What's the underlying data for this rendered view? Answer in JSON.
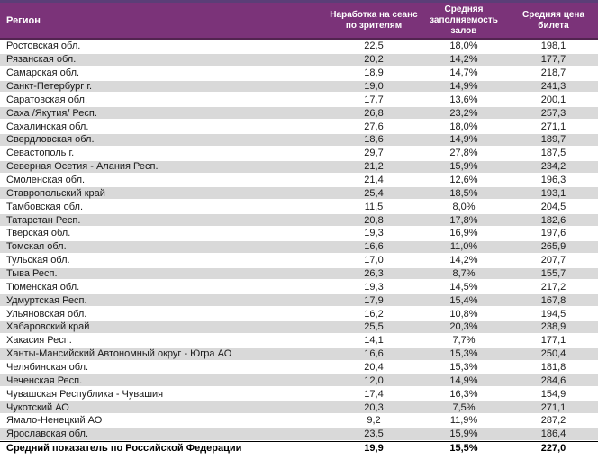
{
  "colors": {
    "header_bg": "#7B3379",
    "header_top_border": "#5B3E77",
    "header_bottom_border": "#522450",
    "band": "#D9D9D9"
  },
  "chart_data": {
    "type": "table",
    "columns": [
      "Регион",
      "Наработка на сеанс по зрителям",
      "Средняя заполняемость залов",
      "Средняя цена билета"
    ],
    "rows": [
      [
        "Ростовская обл.",
        "22,5",
        "18,0%",
        "198,1"
      ],
      [
        "Рязанская обл.",
        "20,2",
        "14,2%",
        "177,7"
      ],
      [
        "Самарская обл.",
        "18,9",
        "14,7%",
        "218,7"
      ],
      [
        "Санкт-Петербург г.",
        "19,0",
        "14,9%",
        "241,3"
      ],
      [
        "Саратовская обл.",
        "17,7",
        "13,6%",
        "200,1"
      ],
      [
        "Саха /Якутия/ Респ.",
        "26,8",
        "23,2%",
        "257,3"
      ],
      [
        "Сахалинская обл.",
        "27,6",
        "18,0%",
        "271,1"
      ],
      [
        "Свердловская обл.",
        "18,6",
        "14,9%",
        "189,7"
      ],
      [
        "Севастополь г.",
        "29,7",
        "27,8%",
        "187,5"
      ],
      [
        "Северная Осетия - Алания Респ.",
        "21,2",
        "15,9%",
        "234,2"
      ],
      [
        "Смоленская обл.",
        "21,4",
        "12,6%",
        "196,3"
      ],
      [
        "Ставропольский край",
        "25,4",
        "18,5%",
        "193,1"
      ],
      [
        "Тамбовская обл.",
        "11,5",
        "8,0%",
        "204,5"
      ],
      [
        "Татарстан Респ.",
        "20,8",
        "17,8%",
        "182,6"
      ],
      [
        "Тверская обл.",
        "19,3",
        "16,9%",
        "197,6"
      ],
      [
        "Томская обл.",
        "16,6",
        "11,0%",
        "265,9"
      ],
      [
        "Тульская обл.",
        "17,0",
        "14,2%",
        "207,7"
      ],
      [
        "Тыва Респ.",
        "26,3",
        "8,7%",
        "155,7"
      ],
      [
        "Тюменская обл.",
        "19,3",
        "14,5%",
        "217,2"
      ],
      [
        "Удмуртская Респ.",
        "17,9",
        "15,4%",
        "167,8"
      ],
      [
        "Ульяновская обл.",
        "16,2",
        "10,8%",
        "194,5"
      ],
      [
        "Хабаровский край",
        "25,5",
        "20,3%",
        "238,9"
      ],
      [
        "Хакасия Респ.",
        "14,1",
        "7,7%",
        "177,1"
      ],
      [
        "Ханты-Мансийский Автономный округ - Югра АО",
        "16,6",
        "15,3%",
        "250,4"
      ],
      [
        "Челябинская обл.",
        "20,4",
        "15,3%",
        "181,8"
      ],
      [
        "Чеченская Респ.",
        "12,0",
        "14,9%",
        "284,6"
      ],
      [
        "Чувашская Республика - Чувашия",
        "17,4",
        "16,3%",
        "154,9"
      ],
      [
        "Чукотский АО",
        "20,3",
        "7,5%",
        "271,1"
      ],
      [
        "Ямало-Ненецкий АО",
        "9,2",
        "11,9%",
        "287,2"
      ],
      [
        "Ярославская обл.",
        "23,5",
        "15,9%",
        "186,4"
      ]
    ],
    "total_row": [
      "Средний показатель по Российской Федерации",
      "19,9",
      "15,5%",
      "227,0"
    ]
  }
}
